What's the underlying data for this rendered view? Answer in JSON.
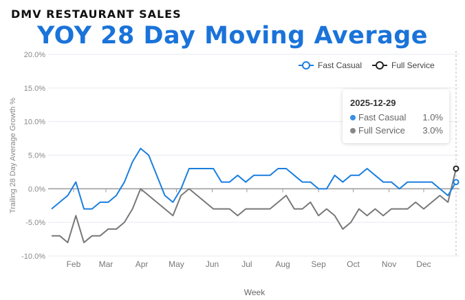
{
  "header": {
    "brand": "DMV RESTAURANT SALES",
    "title": "YOY 28 Day Moving Average"
  },
  "chart_data": {
    "type": "line",
    "title": "YOY 28 Day Moving Average",
    "xlabel": "Week",
    "ylabel": "Trailing 28 Day Average Growth %",
    "ylim": [
      -10,
      20
    ],
    "yticks": [
      "-10.0%",
      "-5.0%",
      "0.0%",
      "5.0%",
      "10.0%",
      "15.0%",
      "20.0%"
    ],
    "ytick_values": [
      -10,
      -5,
      0,
      5,
      10,
      15,
      20
    ],
    "xticks": [
      "Feb",
      "Mar",
      "Apr",
      "May",
      "Jun",
      "Jul",
      "Aug",
      "Sep",
      "Oct",
      "Nov",
      "Dec"
    ],
    "xtick_dates": [
      "2025-02-01",
      "2025-03-01",
      "2025-04-01",
      "2025-05-01",
      "2025-06-01",
      "2025-07-01",
      "2025-08-01",
      "2025-09-01",
      "2025-10-01",
      "2025-11-01",
      "2025-12-01"
    ],
    "x_start": "2025-01-13",
    "x_interval": "weekly",
    "x_end": "2025-12-29",
    "legend_position": "top-right",
    "grid": true,
    "series": [
      {
        "name": "Fast Casual",
        "color": "#1a7ee0",
        "values": [
          -3,
          -2,
          -1,
          1,
          -3,
          -3,
          -2,
          -2,
          -1,
          1,
          4,
          6,
          5,
          2,
          -1,
          -2,
          0,
          3,
          3,
          3,
          3,
          1,
          1,
          2,
          1,
          2,
          2,
          2,
          3,
          3,
          2,
          1,
          1,
          0,
          0,
          2,
          1,
          2,
          2,
          3,
          2,
          1,
          1,
          0,
          1,
          1,
          1,
          1,
          0,
          -1,
          1
        ]
      },
      {
        "name": "Full Service",
        "color": "#777777",
        "marker_color": "#222222",
        "values": [
          -7,
          -7,
          -8,
          -4,
          -8,
          -7,
          -7,
          -6,
          -6,
          -5,
          -3,
          0,
          -1,
          -2,
          -3,
          -4,
          -1,
          0,
          -1,
          -2,
          -3,
          -3,
          -3,
          -4,
          -3,
          -3,
          -3,
          -3,
          -2,
          -1,
          -3,
          -3,
          -2,
          -4,
          -3,
          -4,
          -6,
          -5,
          -3,
          -4,
          -3,
          -4,
          -3,
          -3,
          -3,
          -2,
          -3,
          -2,
          -1,
          -2,
          3
        ]
      }
    ],
    "tooltip": {
      "date": "2025-12-29",
      "rows": [
        {
          "name": "Fast Casual",
          "value": "1.0%",
          "color": "#3a8ee6"
        },
        {
          "name": "Full Service",
          "value": "3.0%",
          "color": "#888888"
        }
      ]
    }
  }
}
